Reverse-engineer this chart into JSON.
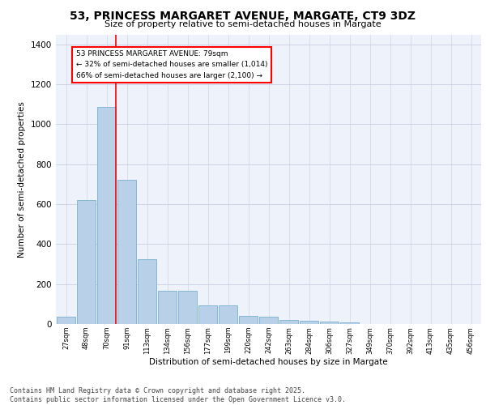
{
  "title": "53, PRINCESS MARGARET AVENUE, MARGATE, CT9 3DZ",
  "subtitle": "Size of property relative to semi-detached houses in Margate",
  "xlabel": "Distribution of semi-detached houses by size in Margate",
  "ylabel": "Number of semi-detached properties",
  "categories": [
    "27sqm",
    "48sqm",
    "70sqm",
    "91sqm",
    "113sqm",
    "134sqm",
    "156sqm",
    "177sqm",
    "199sqm",
    "220sqm",
    "242sqm",
    "263sqm",
    "284sqm",
    "306sqm",
    "327sqm",
    "349sqm",
    "370sqm",
    "392sqm",
    "413sqm",
    "435sqm",
    "456sqm"
  ],
  "values": [
    35,
    620,
    1085,
    720,
    325,
    165,
    165,
    95,
    95,
    40,
    35,
    22,
    15,
    12,
    10,
    0,
    0,
    0,
    0,
    0,
    0
  ],
  "bar_color": "#b8d0e8",
  "bar_edge_color": "#7aafd4",
  "background_color": "#eef2fa",
  "grid_color": "#c8cfe0",
  "annotation_title": "53 PRINCESS MARGARET AVENUE: 79sqm",
  "annotation_line1": "← 32% of semi-detached houses are smaller (1,014)",
  "annotation_line2": "66% of semi-detached houses are larger (2,100) →",
  "footer1": "Contains HM Land Registry data © Crown copyright and database right 2025.",
  "footer2": "Contains public sector information licensed under the Open Government Licence v3.0.",
  "ylim": [
    0,
    1450
  ],
  "yticks": [
    0,
    200,
    400,
    600,
    800,
    1000,
    1200,
    1400
  ]
}
